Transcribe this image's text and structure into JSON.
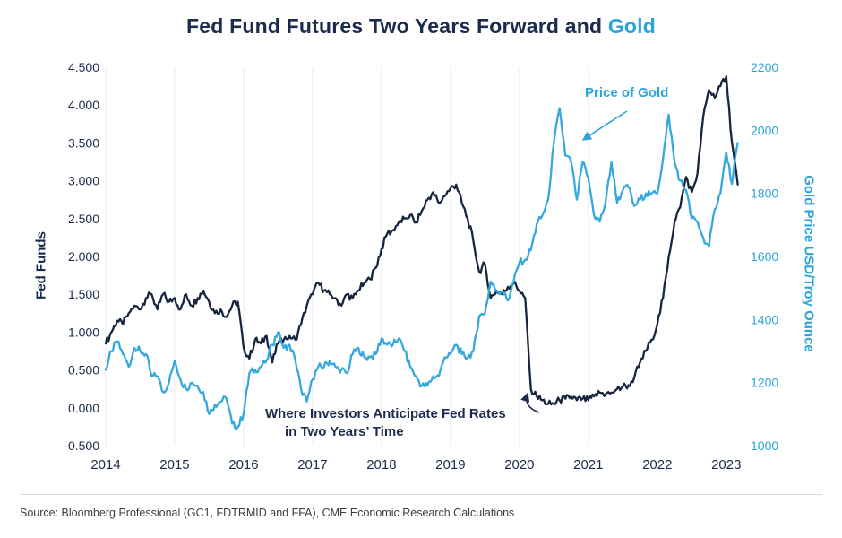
{
  "page": {
    "title_prefix": "Fed Fund Futures Two Years Forward and ",
    "title_accent": "Gold",
    "source": "Source: Bloomberg Professional (GC1, FDTRMID and FFA), CME Economic Research Calculations"
  },
  "annotations": {
    "gold_label": "Price of Gold",
    "fed_label_line1": "Where Investors Anticipate Fed Rates",
    "fed_label_line2": "in Two Years’ Time"
  },
  "colors": {
    "navy": "#16263f",
    "blue": "#35a8dd",
    "title_navy": "#1b2b4d",
    "grid": "#ebebeb"
  },
  "chart_data": {
    "type": "line",
    "title": "Fed Fund Futures Two Years Forward and Gold",
    "x_tick_labels": [
      "2014",
      "2015",
      "2016",
      "2017",
      "2018",
      "2019",
      "2020",
      "2021",
      "2022",
      "2023"
    ],
    "x_range": [
      2014,
      2023.25
    ],
    "left_axis": {
      "label": "Fed Funds",
      "range": [
        -0.5,
        4.5
      ],
      "tick_labels": [
        "4.500",
        "4.000",
        "3.500",
        "3.000",
        "2.500",
        "2.000",
        "1.500",
        "1.000",
        "0.500",
        "0.000",
        "-0.500"
      ]
    },
    "right_axis": {
      "label": "Gold Price USD/Troy Ounce",
      "range": [
        1000,
        2200
      ],
      "tick_labels": [
        "2200",
        "2000",
        "1800",
        "1600",
        "1400",
        "1200",
        "1000"
      ]
    },
    "sampling": {
      "start_year": 2014,
      "step_years": 0.0833333
    },
    "series": [
      {
        "name": "Where Investors Anticipate Fed Rates in Two Years' Time",
        "axis": "left",
        "color": "#16263f",
        "values": [
          0.85,
          1.0,
          1.15,
          1.1,
          1.25,
          1.35,
          1.3,
          1.45,
          1.5,
          1.3,
          1.5,
          1.4,
          1.45,
          1.3,
          1.5,
          1.35,
          1.45,
          1.55,
          1.4,
          1.25,
          1.3,
          1.2,
          1.35,
          1.4,
          0.8,
          0.65,
          0.9,
          0.85,
          0.95,
          0.6,
          0.85,
          0.9,
          0.95,
          0.9,
          1.1,
          1.35,
          1.5,
          1.65,
          1.55,
          1.5,
          1.45,
          1.35,
          1.5,
          1.45,
          1.55,
          1.65,
          1.7,
          1.85,
          2.1,
          2.3,
          2.35,
          2.45,
          2.5,
          2.55,
          2.45,
          2.6,
          2.75,
          2.85,
          2.7,
          2.8,
          2.9,
          2.95,
          2.7,
          2.5,
          2.2,
          1.8,
          1.9,
          1.45,
          1.55,
          1.5,
          1.6,
          1.65,
          1.55,
          1.45,
          0.25,
          0.15,
          0.1,
          0.05,
          0.05,
          0.1,
          0.12,
          0.15,
          0.1,
          0.12,
          0.1,
          0.15,
          0.2,
          0.18,
          0.2,
          0.25,
          0.28,
          0.3,
          0.4,
          0.6,
          0.75,
          0.9,
          1.1,
          1.45,
          2.0,
          2.45,
          2.65,
          3.05,
          2.85,
          3.1,
          3.85,
          4.2,
          4.1,
          4.25,
          4.38,
          3.5,
          2.95
        ]
      },
      {
        "name": "Price of Gold",
        "axis": "right",
        "color": "#35a8dd",
        "values": [
          1240,
          1300,
          1330,
          1290,
          1250,
          1310,
          1300,
          1290,
          1220,
          1220,
          1170,
          1200,
          1270,
          1210,
          1180,
          1200,
          1190,
          1170,
          1100,
          1130,
          1140,
          1150,
          1070,
          1060,
          1100,
          1230,
          1240,
          1250,
          1270,
          1320,
          1360,
          1310,
          1320,
          1270,
          1180,
          1140,
          1210,
          1250,
          1250,
          1270,
          1250,
          1240,
          1230,
          1290,
          1310,
          1280,
          1280,
          1290,
          1340,
          1320,
          1320,
          1340,
          1300,
          1250,
          1220,
          1190,
          1190,
          1220,
          1220,
          1280,
          1290,
          1320,
          1290,
          1280,
          1300,
          1410,
          1420,
          1520,
          1490,
          1490,
          1460,
          1520,
          1580,
          1590,
          1620,
          1700,
          1730,
          1780,
          1960,
          2070,
          1920,
          1900,
          1780,
          1900,
          1850,
          1730,
          1710,
          1770,
          1900,
          1770,
          1810,
          1820,
          1760,
          1780,
          1800,
          1800,
          1800,
          1910,
          2050,
          1900,
          1840,
          1810,
          1720,
          1710,
          1660,
          1630,
          1750,
          1800,
          1930,
          1830,
          1960
        ]
      }
    ]
  }
}
